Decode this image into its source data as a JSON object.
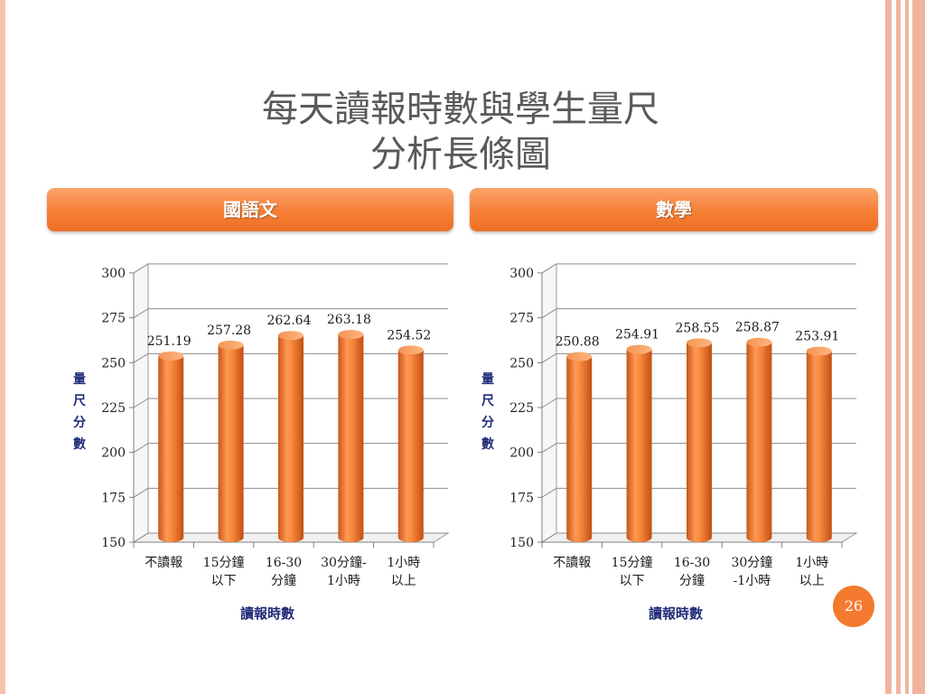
{
  "slide": {
    "title_line1": "每天讀報時數與學生量尺",
    "title_line2": "分析長條圖",
    "page_number": "26",
    "accent_color": "#f57f35"
  },
  "headers": {
    "left": "國語文",
    "right": "數學"
  },
  "chart_data": [
    {
      "type": "bar",
      "title": "",
      "categories": [
        [
          "不讀報"
        ],
        [
          "15分鐘",
          "以下"
        ],
        [
          "16-30",
          "分鐘"
        ],
        [
          "30分鐘-",
          "1小時"
        ],
        [
          "1小時",
          "以上"
        ]
      ],
      "series": [
        {
          "values": [
            251.19,
            257.28,
            262.64,
            263.18,
            254.52
          ]
        }
      ],
      "data_labels": [
        "251.19",
        "257.28",
        "262.64",
        "263.18",
        "254.52"
      ],
      "xlabel": "讀報時數",
      "ylabel": "量尺分數",
      "ylim": [
        150,
        300
      ],
      "yticks": [
        150,
        175,
        200,
        225,
        250,
        275,
        300
      ],
      "grid": true,
      "bar_color": "#f07a2a"
    },
    {
      "type": "bar",
      "title": "",
      "categories": [
        [
          "不讀報"
        ],
        [
          "15分鐘",
          "以下"
        ],
        [
          "16-30",
          "分鐘"
        ],
        [
          "30分鐘",
          "-1小時"
        ],
        [
          "1小時",
          "以上"
        ]
      ],
      "series": [
        {
          "values": [
            250.88,
            254.91,
            258.55,
            258.87,
            253.91
          ]
        }
      ],
      "data_labels": [
        "250.88",
        "254.91",
        "258.55",
        "258.87",
        "253.91"
      ],
      "xlabel": "讀報時數",
      "ylabel": "量尺分數",
      "ylim": [
        150,
        300
      ],
      "yticks": [
        150,
        175,
        200,
        225,
        250,
        275,
        300
      ],
      "grid": true,
      "bar_color": "#f07a2a"
    }
  ]
}
